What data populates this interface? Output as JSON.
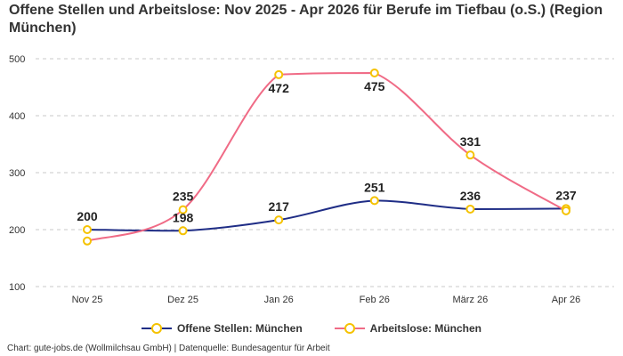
{
  "chart_data": {
    "type": "line",
    "title": "Offene Stellen und Arbeitslose: Nov 2025 - Apr 2026 für Berufe im Tiefbau (o.S.) (Region München)",
    "categories": [
      "Nov 25",
      "Dez 25",
      "Jan 26",
      "Feb 26",
      "März 26",
      "Apr 26"
    ],
    "ylim": [
      100,
      500
    ],
    "yticks": [
      100,
      200,
      300,
      400,
      500
    ],
    "grid": true,
    "legend_position": "bottom",
    "series": [
      {
        "name": "Offene Stellen: München",
        "values": [
          200,
          198,
          217,
          251,
          236,
          237
        ],
        "labels": [
          "200",
          "198",
          "217",
          "251",
          "236",
          "237"
        ],
        "color": "#1f2d86"
      },
      {
        "name": "Arbeitslose: München",
        "values": [
          180,
          235,
          472,
          475,
          331,
          233
        ],
        "labels": [
          "",
          "235",
          "472",
          "475",
          "331",
          ""
        ],
        "color": "#f06b86"
      }
    ],
    "marker_color": "#f5c200"
  },
  "footer": "Chart: gute-jobs.de (Wollmilchsau GmbH) | Datenquelle: Bundesagentur für Arbeit"
}
